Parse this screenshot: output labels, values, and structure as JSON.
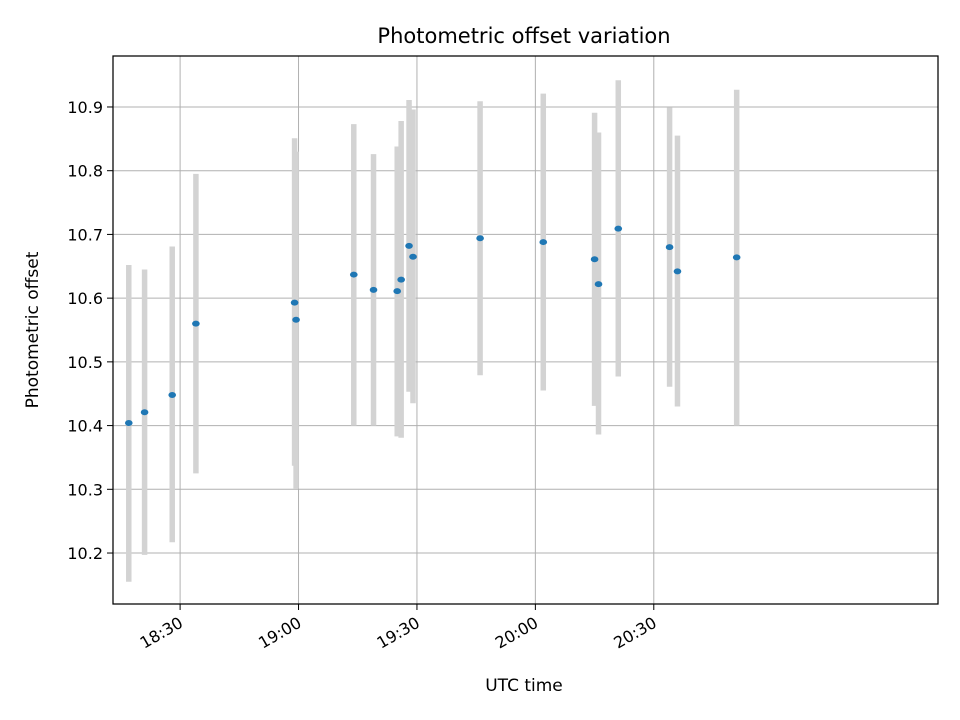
{
  "chart_data": {
    "type": "scatter",
    "title": "Photometric offset variation",
    "xlabel": "UTC time",
    "ylabel": "Photometric offset",
    "grid": true,
    "xlim": [
      "18:13",
      "21:42"
    ],
    "ylim": [
      10.12,
      10.98
    ],
    "x_ticks": [
      "18:30",
      "19:00",
      "19:30",
      "20:00",
      "20:30"
    ],
    "y_ticks": [
      "10.2",
      "10.3",
      "10.4",
      "10.5",
      "10.6",
      "10.7",
      "10.8",
      "10.9"
    ],
    "point_color": "#1f77b4",
    "errorbar_color": "#d3d3d3",
    "points": [
      {
        "t": "18:17",
        "y": 10.404,
        "low": 10.155,
        "high": 10.652
      },
      {
        "t": "18:21",
        "y": 10.421,
        "low": 10.197,
        "high": 10.645
      },
      {
        "t": "18:28",
        "y": 10.448,
        "low": 10.217,
        "high": 10.681
      },
      {
        "t": "18:34",
        "y": 10.56,
        "low": 10.325,
        "high": 10.795
      },
      {
        "t": "18:59",
        "y": 10.593,
        "low": 10.337,
        "high": 10.851
      },
      {
        "t": "18:59",
        "y": 10.566,
        "low": 10.301,
        "high": 10.83
      },
      {
        "t": "19:14",
        "y": 10.637,
        "low": 10.4,
        "high": 10.873
      },
      {
        "t": "19:19",
        "y": 10.613,
        "low": 10.4,
        "high": 10.826
      },
      {
        "t": "19:25",
        "y": 10.611,
        "low": 10.383,
        "high": 10.838
      },
      {
        "t": "19:26",
        "y": 10.629,
        "low": 10.381,
        "high": 10.878
      },
      {
        "t": "19:28",
        "y": 10.682,
        "low": 10.453,
        "high": 10.911
      },
      {
        "t": "19:29",
        "y": 10.665,
        "low": 10.435,
        "high": 10.896
      },
      {
        "t": "19:46",
        "y": 10.694,
        "low": 10.479,
        "high": 10.909
      },
      {
        "t": "20:02",
        "y": 10.688,
        "low": 10.455,
        "high": 10.921
      },
      {
        "t": "20:15",
        "y": 10.661,
        "low": 10.431,
        "high": 10.891
      },
      {
        "t": "20:16",
        "y": 10.622,
        "low": 10.386,
        "high": 10.86
      },
      {
        "t": "20:21",
        "y": 10.709,
        "low": 10.477,
        "high": 10.942
      },
      {
        "t": "20:34",
        "y": 10.68,
        "low": 10.461,
        "high": 10.899
      },
      {
        "t": "20:36",
        "y": 10.642,
        "low": 10.43,
        "high": 10.855
      },
      {
        "t": "20:51",
        "y": 10.664,
        "low": 10.4,
        "high": 10.927
      }
    ]
  }
}
